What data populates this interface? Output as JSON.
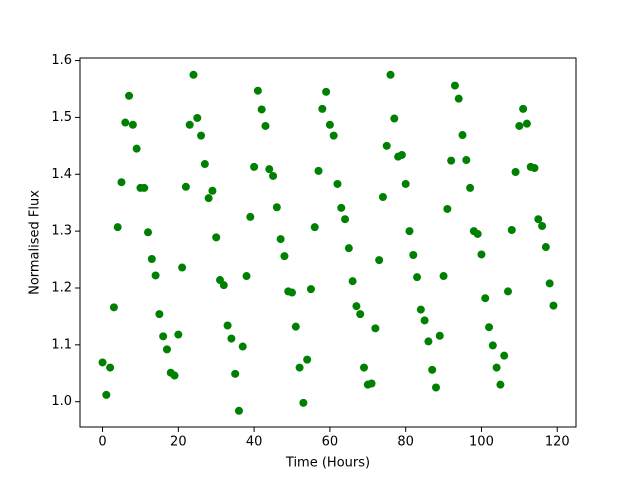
{
  "chart_data": {
    "type": "scatter",
    "x_label": "Time (Hours)",
    "y_label": "Normalised Flux",
    "color": "#008000",
    "x": [
      0,
      1,
      2,
      3,
      4,
      5,
      6,
      7,
      8,
      9,
      10,
      11,
      12,
      13,
      14,
      15,
      16,
      17,
      18,
      19,
      20,
      21,
      22,
      23,
      24,
      25,
      26,
      27,
      28,
      29,
      30,
      31,
      32,
      33,
      34,
      35,
      36,
      37,
      38,
      39,
      40,
      41,
      42,
      43,
      44,
      45,
      46,
      47,
      48,
      49,
      50,
      51,
      52,
      53,
      54,
      55,
      56,
      57,
      58,
      59,
      60,
      61,
      62,
      63,
      64,
      65,
      66,
      67,
      68,
      69,
      70,
      71,
      72,
      73,
      74,
      75,
      76,
      77,
      78,
      79,
      80,
      81,
      82,
      83,
      84,
      85,
      86,
      87,
      88,
      89,
      90,
      91,
      92,
      93,
      94,
      95,
      96,
      97,
      98,
      99,
      100,
      101,
      102,
      103,
      104,
      105,
      106,
      107,
      108,
      109,
      110,
      111,
      112,
      113,
      114,
      115,
      116,
      117,
      118,
      119
    ],
    "values": [
      1.069,
      1.012,
      1.06,
      1.166,
      1.307,
      1.386,
      1.491,
      1.538,
      1.487,
      1.445,
      1.376,
      1.376,
      1.298,
      1.251,
      1.222,
      1.154,
      1.115,
      1.092,
      1.051,
      1.046,
      1.118,
      1.236,
      1.378,
      1.487,
      1.575,
      1.499,
      1.468,
      1.418,
      1.358,
      1.371,
      1.289,
      1.214,
      1.205,
      1.134,
      1.111,
      1.049,
      0.984,
      1.097,
      1.221,
      1.325,
      1.413,
      1.547,
      1.514,
      1.485,
      1.409,
      1.397,
      1.342,
      1.286,
      1.256,
      1.194,
      1.192,
      1.132,
      1.06,
      0.998,
      1.074,
      1.198,
      1.307,
      1.406,
      1.515,
      1.545,
      1.487,
      1.468,
      1.383,
      1.341,
      1.321,
      1.27,
      1.212,
      1.168,
      1.154,
      1.06,
      1.03,
      1.032,
      1.129,
      1.249,
      1.36,
      1.45,
      1.575,
      1.498,
      1.431,
      1.434,
      1.383,
      1.3,
      1.258,
      1.219,
      1.162,
      1.143,
      1.106,
      1.056,
      1.025,
      1.116,
      1.221,
      1.339,
      1.424,
      1.556,
      1.533,
      1.469,
      1.425,
      1.376,
      1.3,
      1.295,
      1.259,
      1.182,
      1.131,
      1.099,
      1.06,
      1.03,
      1.081,
      1.194,
      1.302,
      1.404,
      1.485,
      1.515,
      1.489,
      1.413,
      1.411,
      1.321,
      1.309,
      1.272,
      1.208,
      1.169
    ],
    "xlim": [
      -5.95,
      124.95
    ],
    "ylim": [
      0.9555,
      1.6045
    ],
    "xticks": [
      0,
      20,
      40,
      60,
      80,
      100,
      120
    ],
    "yticks": [
      {
        "value": 1,
        "label": "1.0"
      },
      1.1,
      1.2,
      1.3,
      1.4,
      1.5,
      1.6
    ],
    "grid": false
  }
}
